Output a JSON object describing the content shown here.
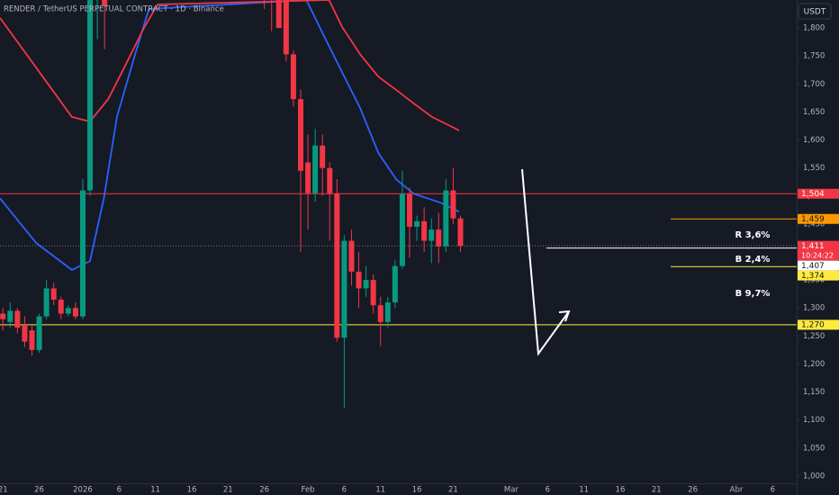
{
  "chart_data": {
    "type": "candlestick",
    "title": "RENDER / TetherUS PERPETUAL CONTRACT · 1D · Binance",
    "currency": "USDT",
    "up_color": "#089981",
    "down_color": "#f23645",
    "grid": false,
    "xlim": [
      -0.4,
      109.3
    ],
    "ylim": [
      987,
      1850
    ],
    "xticks": [
      {
        "value": 0,
        "label": "21"
      },
      {
        "value": 5,
        "label": "26"
      },
      {
        "value": 11,
        "label": "2026"
      },
      {
        "value": 16,
        "label": "6"
      },
      {
        "value": 21,
        "label": "11"
      },
      {
        "value": 26,
        "label": "16"
      },
      {
        "value": 31,
        "label": "21"
      },
      {
        "value": 36,
        "label": "26"
      },
      {
        "value": 42,
        "label": "Feb"
      },
      {
        "value": 47,
        "label": "6"
      },
      {
        "value": 52,
        "label": "11"
      },
      {
        "value": 57,
        "label": "16"
      },
      {
        "value": 62,
        "label": "21"
      },
      {
        "value": 70,
        "label": "Mar"
      },
      {
        "value": 75,
        "label": "6"
      },
      {
        "value": 80,
        "label": "11"
      },
      {
        "value": 85,
        "label": "16"
      },
      {
        "value": 90,
        "label": "21"
      },
      {
        "value": 95,
        "label": "26"
      },
      {
        "value": 101,
        "label": "Abr"
      },
      {
        "value": 106,
        "label": "6"
      }
    ],
    "yticks": [
      {
        "value": 1000,
        "label": "1,000"
      },
      {
        "value": 1050,
        "label": "1,050"
      },
      {
        "value": 1100,
        "label": "1,100"
      },
      {
        "value": 1150,
        "label": "1,150"
      },
      {
        "value": 1200,
        "label": "1,200"
      },
      {
        "value": 1250,
        "label": "1,250"
      },
      {
        "value": 1300,
        "label": "1,300"
      },
      {
        "value": 1350,
        "label": "1,350"
      },
      {
        "value": 1400,
        "label": "1,400"
      },
      {
        "value": 1450,
        "label": "1,450"
      },
      {
        "value": 1500,
        "label": "1,500"
      },
      {
        "value": 1550,
        "label": "1,550"
      },
      {
        "value": 1600,
        "label": "1,600"
      },
      {
        "value": 1650,
        "label": "1,650"
      },
      {
        "value": 1700,
        "label": "1,700"
      },
      {
        "value": 1750,
        "label": "1,750"
      },
      {
        "value": 1800,
        "label": "1,800"
      }
    ],
    "candles": {
      "x": [
        0,
        1,
        2,
        3,
        4,
        5,
        6,
        7,
        8,
        9,
        10,
        11,
        12,
        13,
        14,
        36,
        37,
        38,
        39,
        40,
        41,
        42,
        43,
        44,
        45,
        46,
        47,
        48,
        49,
        50,
        51,
        52,
        53,
        54,
        55,
        56,
        57,
        58,
        59,
        60,
        61,
        62,
        63
      ],
      "open": [
        1290,
        1275,
        1295,
        1270,
        1260,
        1225,
        1285,
        1335,
        1315,
        1290,
        1300,
        1285,
        1510,
        1860,
        1880,
        1900,
        1880,
        1860,
        1850,
        1753,
        1673,
        1560,
        1505,
        1590,
        1550,
        1504,
        1247,
        1420,
        1365,
        1335,
        1350,
        1305,
        1275,
        1310,
        1375,
        1504,
        1445,
        1455,
        1420,
        1440,
        1410,
        1510,
        1460
      ],
      "high": [
        1300,
        1310,
        1300,
        1285,
        1270,
        1290,
        1350,
        1345,
        1320,
        1305,
        1310,
        1530,
        1870,
        1900,
        1910,
        1950,
        1920,
        1900,
        1870,
        1760,
        1690,
        1610,
        1620,
        1610,
        1560,
        1530,
        1430,
        1440,
        1400,
        1375,
        1360,
        1320,
        1320,
        1385,
        1545,
        1515,
        1465,
        1480,
        1460,
        1470,
        1530,
        1550,
        1465
      ],
      "low": [
        1260,
        1265,
        1255,
        1230,
        1215,
        1220,
        1280,
        1305,
        1280,
        1285,
        1280,
        1280,
        1500,
        1780,
        1762,
        1834,
        1794,
        1805,
        1740,
        1660,
        1400,
        1440,
        1490,
        1500,
        1420,
        1240,
        1122,
        1340,
        1300,
        1320,
        1290,
        1232,
        1265,
        1300,
        1370,
        1390,
        1420,
        1400,
        1380,
        1380,
        1400,
        1450,
        1400
      ],
      "close": [
        1280,
        1295,
        1265,
        1240,
        1225,
        1285,
        1335,
        1315,
        1290,
        1300,
        1285,
        1510,
        1860,
        1880,
        1840,
        1880,
        1860,
        1800,
        1753,
        1673,
        1545,
        1505,
        1590,
        1550,
        1504,
        1247,
        1420,
        1365,
        1335,
        1350,
        1305,
        1275,
        1310,
        1375,
        1504,
        1445,
        1455,
        1420,
        1440,
        1410,
        1510,
        1460,
        1411
      ]
    },
    "indicators": [
      {
        "color": "#2962ff",
        "x": [
          -0.4,
          4.6,
          9.5,
          12,
          13.9,
          15.7,
          18.2,
          20.1,
          41.8,
          44.2,
          46.7,
          49.2,
          51.7,
          54.2,
          56.6,
          60.3,
          62.8
        ],
        "values": [
          1496,
          1416,
          1368,
          1384,
          1496,
          1641,
          1753,
          1834,
          1850,
          1786,
          1721,
          1657,
          1577,
          1529,
          1504,
          1488,
          1472
        ]
      },
      {
        "color": "#f23645",
        "x": [
          -0.4,
          4.6,
          9.5,
          12,
          14.5,
          17,
          19.5,
          21.3,
          44.9,
          46.7,
          49.2,
          51.7,
          54.2,
          56.6,
          59.1,
          61.6,
          62.8
        ],
        "values": [
          1818,
          1729,
          1641,
          1633,
          1673,
          1737,
          1802,
          1842,
          1850,
          1802,
          1753,
          1713,
          1689,
          1665,
          1641,
          1625,
          1617
        ]
      }
    ],
    "price_levels": [
      {
        "value": 1504,
        "label": "1,504",
        "color": "#f23645"
      },
      {
        "value": 1459,
        "label": "1,459",
        "color": "#ff9800"
      },
      {
        "value": 1411,
        "label": "1,411",
        "color": "#f23645",
        "countdown": "10:24:22"
      },
      {
        "value": 1407,
        "label": "1,407",
        "color": "#ffffff"
      },
      {
        "value": 1374,
        "label": "1,374",
        "color": "#ffeb3b"
      },
      {
        "value": 1270,
        "label": "1,270",
        "color": "#ffeb3b"
      }
    ],
    "annotations": [
      "R 3,6%",
      "B 2,4%",
      "B 9,7%"
    ]
  }
}
